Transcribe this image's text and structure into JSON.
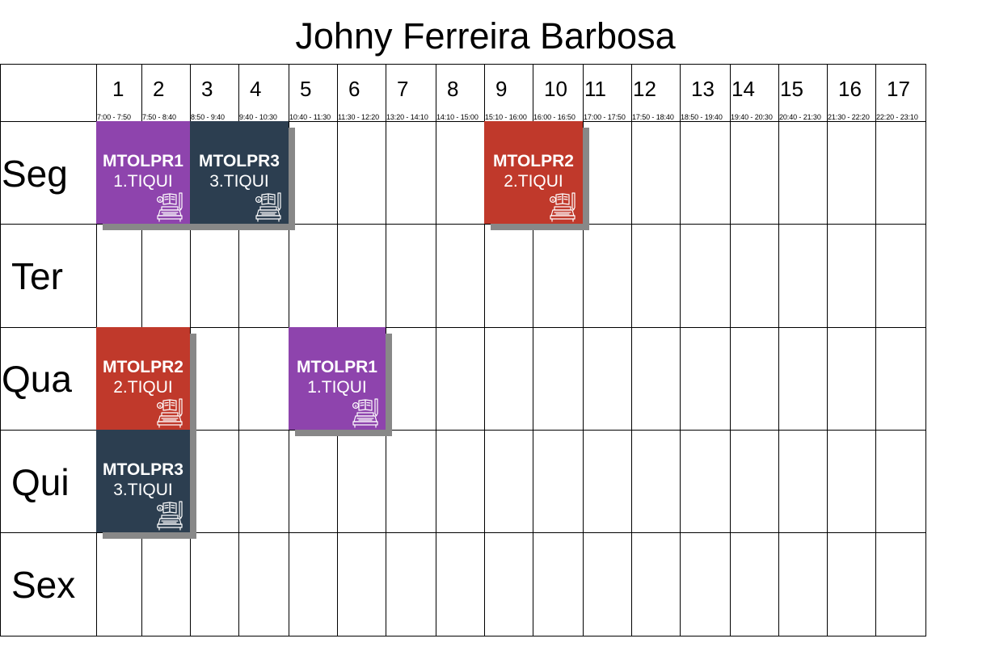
{
  "header": {
    "title": "Johny Ferreira Barbosa"
  },
  "columns": [
    {
      "num": "1",
      "time": "7:00 - 7:50"
    },
    {
      "num": "2",
      "time": "7:50 - 8:40"
    },
    {
      "num": "3",
      "time": "8:50 - 9:40"
    },
    {
      "num": "4",
      "time": "9:40 - 10:30"
    },
    {
      "num": "5",
      "time": "10:40 - 11:30"
    },
    {
      "num": "6",
      "time": "11:30 - 12:20"
    },
    {
      "num": "7",
      "time": "13:20 - 14:10"
    },
    {
      "num": "8",
      "time": "14:10 - 15:00"
    },
    {
      "num": "9",
      "time": "15:10 - 16:00"
    },
    {
      "num": "10",
      "time": "16:00 - 16:50"
    },
    {
      "num": "11",
      "time": "17:00 - 17:50"
    },
    {
      "num": "12",
      "time": "17:50 - 18:40"
    },
    {
      "num": "13",
      "time": "18:50 - 19:40"
    },
    {
      "num": "14",
      "time": "19:40 - 20:30"
    },
    {
      "num": "15",
      "time": "20:40 - 21:30"
    },
    {
      "num": "16",
      "time": "21:30 - 22:20"
    },
    {
      "num": "17",
      "time": "22:20 - 23:10"
    }
  ],
  "days": [
    "Seg",
    "Ter",
    "Qua",
    "Qui",
    "Sex"
  ],
  "classes": [
    {
      "day": 0,
      "start": 1,
      "end": 2,
      "code": "MTOLPR1",
      "group": "1.TIQUI",
      "color": "#8e44ad",
      "icon": "study-desk-icon"
    },
    {
      "day": 0,
      "start": 3,
      "end": 4,
      "code": "MTOLPR3",
      "group": "3.TIQUI",
      "color": "#2c3e50",
      "icon": "study-desk-icon"
    },
    {
      "day": 0,
      "start": 9,
      "end": 10,
      "code": "MTOLPR2",
      "group": "2.TIQUI",
      "color": "#c0392b",
      "icon": "study-desk-icon"
    },
    {
      "day": 2,
      "start": 1,
      "end": 2,
      "code": "MTOLPR2",
      "group": "2.TIQUI",
      "color": "#c0392b",
      "icon": "study-desk-icon"
    },
    {
      "day": 2,
      "start": 5,
      "end": 6,
      "code": "MTOLPR1",
      "group": "1.TIQUI",
      "color": "#8e44ad",
      "icon": "study-desk-icon"
    },
    {
      "day": 3,
      "start": 1,
      "end": 2,
      "code": "MTOLPR3",
      "group": "3.TIQUI",
      "color": "#2c3e50",
      "icon": "study-desk-icon"
    }
  ],
  "colors": {
    "grid_line": "#000000",
    "shadow": "#888888",
    "text_on_block": "#ffffff"
  }
}
